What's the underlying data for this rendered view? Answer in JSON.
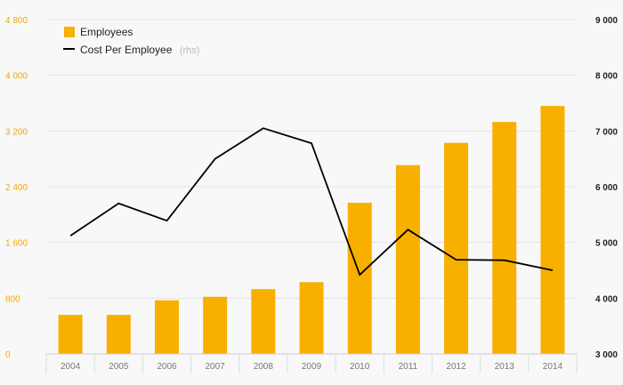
{
  "chart_data": {
    "type": "bar",
    "categories": [
      "2004",
      "2005",
      "2006",
      "2007",
      "2008",
      "2009",
      "2010",
      "2011",
      "2012",
      "2013",
      "2014"
    ],
    "series": [
      {
        "name": "Employees",
        "type": "bar",
        "axis": "left",
        "color": "#f8b000",
        "values": [
          560,
          560,
          770,
          820,
          930,
          1030,
          2170,
          2710,
          3030,
          3330,
          3560
        ]
      },
      {
        "name": "Cost Per Employee",
        "axis_note": "(rhs)",
        "type": "line",
        "axis": "right",
        "color": "#000000",
        "values": [
          5120,
          5700,
          5390,
          6500,
          7050,
          6780,
          4420,
          5230,
          4690,
          4680,
          4500
        ]
      }
    ],
    "y_left": {
      "range": [
        0,
        4800
      ],
      "ticks": [
        0,
        800,
        1600,
        2400,
        3200,
        4000,
        4800
      ],
      "tick_labels": [
        "0",
        "800",
        "1 600",
        "2 400",
        "3 200",
        "4 000",
        "4 800"
      ],
      "color": "#f5a800"
    },
    "y_right": {
      "range": [
        3000,
        9000
      ],
      "ticks": [
        3000,
        4000,
        5000,
        6000,
        7000,
        8000,
        9000
      ],
      "tick_labels": [
        "3 000",
        "4 000",
        "5 000",
        "6 000",
        "7 000",
        "8 000",
        "9 000"
      ],
      "color": "#222222"
    },
    "grid": true,
    "legend_position": "top-left"
  }
}
